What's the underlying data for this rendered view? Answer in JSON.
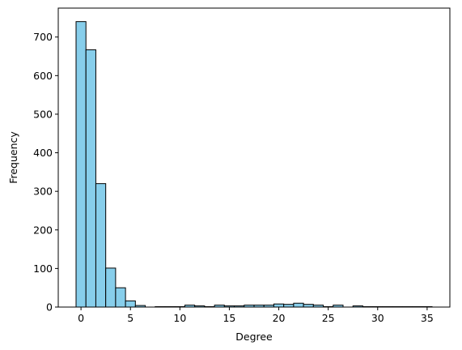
{
  "chart_data": {
    "type": "bar",
    "subtype": "histogram",
    "xlabel": "Degree",
    "ylabel": "Frequency",
    "xlim": [
      -2.3,
      37.3
    ],
    "ylim": [
      0,
      775
    ],
    "xticks": [
      0,
      5,
      10,
      15,
      20,
      25,
      30,
      35
    ],
    "yticks": [
      0,
      100,
      200,
      300,
      400,
      500,
      600,
      700
    ],
    "bar_color": "#87ceeb",
    "edge_color": "#000000",
    "grid": false,
    "bins": [
      {
        "x0": -0.5,
        "x1": 0.5,
        "value": 740
      },
      {
        "x0": 0.5,
        "x1": 1.5,
        "value": 667
      },
      {
        "x0": 1.5,
        "x1": 2.5,
        "value": 320
      },
      {
        "x0": 2.5,
        "x1": 3.5,
        "value": 101
      },
      {
        "x0": 3.5,
        "x1": 4.5,
        "value": 50
      },
      {
        "x0": 4.5,
        "x1": 5.5,
        "value": 16
      },
      {
        "x0": 5.5,
        "x1": 6.5,
        "value": 4
      },
      {
        "x0": 6.5,
        "x1": 7.5,
        "value": 0
      },
      {
        "x0": 7.5,
        "x1": 8.5,
        "value": 1
      },
      {
        "x0": 8.5,
        "x1": 9.5,
        "value": 1
      },
      {
        "x0": 9.5,
        "x1": 10.5,
        "value": 1
      },
      {
        "x0": 10.5,
        "x1": 11.5,
        "value": 5
      },
      {
        "x0": 11.5,
        "x1": 12.5,
        "value": 3
      },
      {
        "x0": 12.5,
        "x1": 13.5,
        "value": 1
      },
      {
        "x0": 13.5,
        "x1": 14.5,
        "value": 5
      },
      {
        "x0": 14.5,
        "x1": 15.5,
        "value": 3
      },
      {
        "x0": 15.5,
        "x1": 16.5,
        "value": 3
      },
      {
        "x0": 16.5,
        "x1": 17.5,
        "value": 5
      },
      {
        "x0": 17.5,
        "x1": 18.5,
        "value": 5
      },
      {
        "x0": 18.5,
        "x1": 19.5,
        "value": 5
      },
      {
        "x0": 19.5,
        "x1": 20.5,
        "value": 8
      },
      {
        "x0": 20.5,
        "x1": 21.5,
        "value": 7
      },
      {
        "x0": 21.5,
        "x1": 22.5,
        "value": 10
      },
      {
        "x0": 22.5,
        "x1": 23.5,
        "value": 7
      },
      {
        "x0": 23.5,
        "x1": 24.5,
        "value": 5
      },
      {
        "x0": 24.5,
        "x1": 25.5,
        "value": 1
      },
      {
        "x0": 25.5,
        "x1": 26.5,
        "value": 5
      },
      {
        "x0": 26.5,
        "x1": 27.5,
        "value": 0
      },
      {
        "x0": 27.5,
        "x1": 28.5,
        "value": 3
      },
      {
        "x0": 28.5,
        "x1": 29.5,
        "value": 1
      },
      {
        "x0": 29.5,
        "x1": 30.5,
        "value": 1
      },
      {
        "x0": 30.5,
        "x1": 31.5,
        "value": 1
      },
      {
        "x0": 31.5,
        "x1": 32.5,
        "value": 1
      },
      {
        "x0": 32.5,
        "x1": 33.5,
        "value": 1
      },
      {
        "x0": 33.5,
        "x1": 34.5,
        "value": 1
      },
      {
        "x0": 34.5,
        "x1": 35.5,
        "value": 1
      }
    ]
  }
}
